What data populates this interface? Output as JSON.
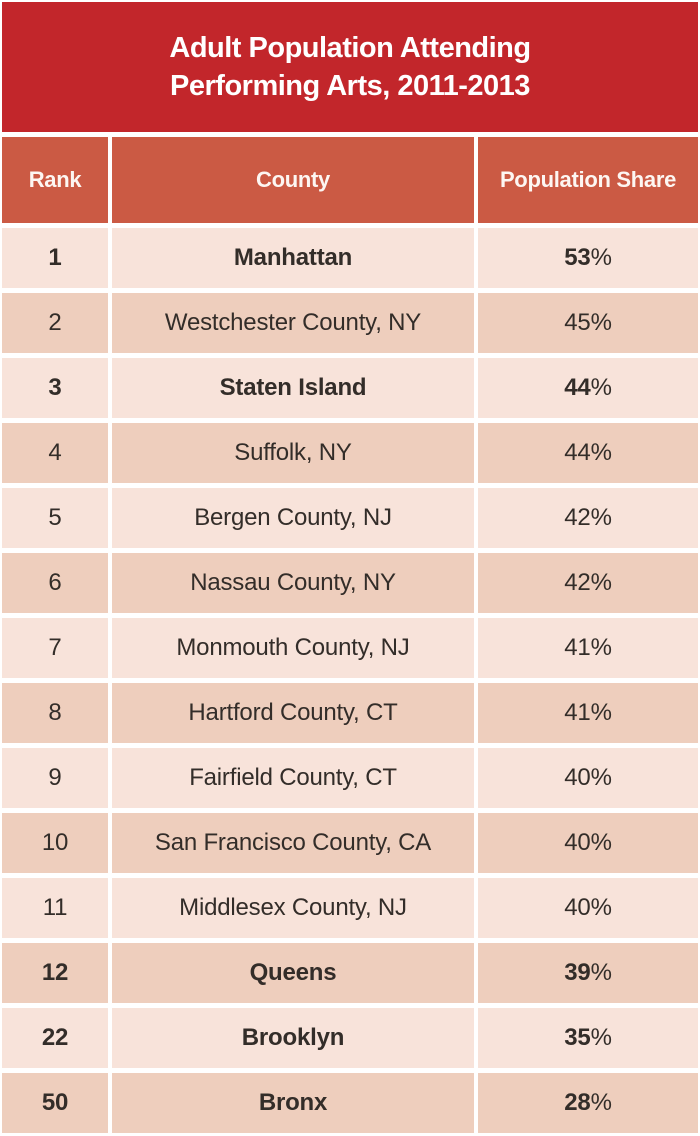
{
  "title": {
    "line1": "Adult Population Attending",
    "line2": "Performing Arts, 2011-2013"
  },
  "table": {
    "percent_suffix": "%",
    "columns": [
      "Rank",
      "County",
      "Population Share"
    ],
    "rows": [
      {
        "rank": "1",
        "county": "Manhattan",
        "share_value": "53",
        "highlight": true
      },
      {
        "rank": "2",
        "county": "Westchester County, NY",
        "share_value": "45",
        "highlight": false
      },
      {
        "rank": "3",
        "county": "Staten Island",
        "share_value": "44",
        "highlight": true
      },
      {
        "rank": "4",
        "county": "Suffolk, NY",
        "share_value": "44",
        "highlight": false
      },
      {
        "rank": "5",
        "county": "Bergen County, NJ",
        "share_value": "42",
        "highlight": false
      },
      {
        "rank": "6",
        "county": "Nassau County, NY",
        "share_value": "42",
        "highlight": false
      },
      {
        "rank": "7",
        "county": "Monmouth County, NJ",
        "share_value": "41",
        "highlight": false
      },
      {
        "rank": "8",
        "county": "Hartford County, CT",
        "share_value": "41",
        "highlight": false
      },
      {
        "rank": "9",
        "county": "Fairfield County, CT",
        "share_value": "40",
        "highlight": false
      },
      {
        "rank": "10",
        "county": "San Francisco County, CA",
        "share_value": "40",
        "highlight": false
      },
      {
        "rank": "11",
        "county": "Middlesex County, NJ",
        "share_value": "40",
        "highlight": false
      },
      {
        "rank": "12",
        "county": "Queens",
        "share_value": "39",
        "highlight": true
      },
      {
        "rank": "22",
        "county": "Brooklyn",
        "share_value": "35",
        "highlight": true
      },
      {
        "rank": "50",
        "county": "Bronx",
        "share_value": "28",
        "highlight": true
      }
    ]
  },
  "colors": {
    "banner_red": "#c2262b",
    "header_terracotta": "#cb5a44",
    "row_light": "#f8e3da",
    "row_dark": "#eecebd",
    "text_dark": "#332d29",
    "text_white": "#ffffff"
  },
  "chart_data": {
    "type": "table",
    "title": "Adult Population Attending Performing Arts, 2011-2013",
    "columns": [
      "Rank",
      "County",
      "Population Share"
    ],
    "rows": [
      [
        1,
        "Manhattan",
        "53%"
      ],
      [
        2,
        "Westchester County, NY",
        "45%"
      ],
      [
        3,
        "Staten Island",
        "44%"
      ],
      [
        4,
        "Suffolk, NY",
        "44%"
      ],
      [
        5,
        "Bergen County, NJ",
        "42%"
      ],
      [
        6,
        "Nassau County, NY",
        "42%"
      ],
      [
        7,
        "Monmouth County, NJ",
        "41%"
      ],
      [
        8,
        "Hartford County, CT",
        "41%"
      ],
      [
        9,
        "Fairfield County, CT",
        "40%"
      ],
      [
        10,
        "San Francisco County, CA",
        "40%"
      ],
      [
        11,
        "Middlesex County, NJ",
        "40%"
      ],
      [
        12,
        "Queens",
        "39%"
      ],
      [
        22,
        "Brooklyn",
        "35%"
      ],
      [
        50,
        "Bronx",
        "28%"
      ]
    ],
    "notes": "NYC borough rows (Manhattan, Staten Island, Queens, Brooklyn, Bronx) are emphasized in bold; rows alternate light/dark pink shading"
  }
}
